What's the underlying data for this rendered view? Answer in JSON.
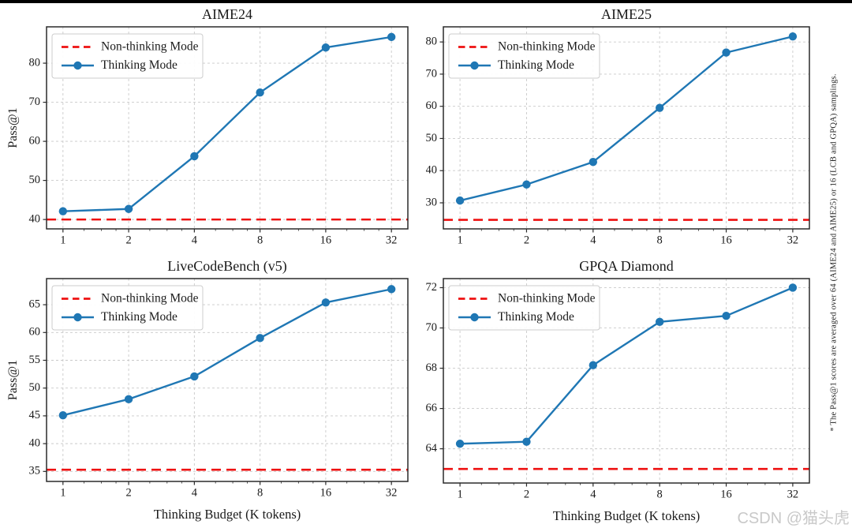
{
  "figure": {
    "sidenote": "* The Pass@1 scores are averaged over 64 (AIME24 and AIME25) or 16 (LCB and GPQA) samplings.",
    "watermark": "CSDN @猫头虎",
    "colors": {
      "thinking": "#1f77b4",
      "non_thinking": "#ee1111",
      "grid": "#c9c9c9",
      "spine": "#2a2a2a",
      "legend_border": "#cccccc"
    }
  },
  "legend": {
    "non_thinking_label": "Non-thinking Mode",
    "thinking_label": "Thinking Mode"
  },
  "chart_data": [
    {
      "type": "line",
      "id": "aime24",
      "title": "AIME24",
      "xlabel": "",
      "ylabel": "Pass@1",
      "xscale": "log2",
      "x": [
        1,
        2,
        4,
        8,
        16,
        32
      ],
      "xtick_labels": [
        "1",
        "2",
        "4",
        "8",
        "16",
        "32"
      ],
      "series": [
        {
          "name": "Thinking Mode",
          "kind": "line",
          "values": [
            42.1,
            42.7,
            56.2,
            72.5,
            84.0,
            86.7
          ]
        },
        {
          "name": "Non-thinking Mode",
          "kind": "hline",
          "value": 40.0
        }
      ],
      "yticks": [
        40,
        50,
        60,
        70,
        80
      ],
      "ylim": [
        37.6,
        89.3
      ],
      "grid": true,
      "legend_position": "upper-left"
    },
    {
      "type": "line",
      "id": "aime25",
      "title": "AIME25",
      "xlabel": "",
      "ylabel": "",
      "xscale": "log2",
      "x": [
        1,
        2,
        4,
        8,
        16,
        32
      ],
      "xtick_labels": [
        "1",
        "2",
        "4",
        "8",
        "16",
        "32"
      ],
      "series": [
        {
          "name": "Thinking Mode",
          "kind": "line",
          "values": [
            30.7,
            35.7,
            42.7,
            59.5,
            76.7,
            81.7
          ]
        },
        {
          "name": "Non-thinking Mode",
          "kind": "hline",
          "value": 24.7
        }
      ],
      "yticks": [
        30,
        40,
        50,
        60,
        70,
        80
      ],
      "ylim": [
        21.9,
        84.7
      ],
      "grid": true,
      "legend_position": "upper-left"
    },
    {
      "type": "line",
      "id": "livecodebench-v5",
      "title": "LiveCodeBench (v5)",
      "xlabel": "Thinking Budget (K tokens)",
      "ylabel": "Pass@1",
      "xscale": "log2",
      "x": [
        1,
        2,
        4,
        8,
        16,
        32
      ],
      "xtick_labels": [
        "1",
        "2",
        "4",
        "8",
        "16",
        "32"
      ],
      "series": [
        {
          "name": "Thinking Mode",
          "kind": "line",
          "values": [
            45.1,
            48.0,
            52.1,
            59.0,
            65.4,
            67.8
          ]
        },
        {
          "name": "Non-thinking Mode",
          "kind": "hline",
          "value": 35.3
        }
      ],
      "yticks": [
        35,
        40,
        45,
        50,
        55,
        60,
        65
      ],
      "ylim": [
        33.2,
        69.7
      ],
      "grid": true,
      "legend_position": "upper-left"
    },
    {
      "type": "line",
      "id": "gpqa-diamond",
      "title": "GPQA Diamond",
      "xlabel": "Thinking Budget (K tokens)",
      "ylabel": "",
      "xscale": "log2",
      "x": [
        1,
        2,
        4,
        8,
        16,
        32
      ],
      "xtick_labels": [
        "1",
        "2",
        "4",
        "8",
        "16",
        "32"
      ],
      "series": [
        {
          "name": "Thinking Mode",
          "kind": "line",
          "values": [
            64.25,
            64.35,
            68.15,
            70.3,
            70.6,
            72.0
          ]
        },
        {
          "name": "Non-thinking Mode",
          "kind": "hline",
          "value": 63.0
        }
      ],
      "yticks": [
        64,
        66,
        68,
        70,
        72
      ],
      "ylim": [
        62.3,
        72.45
      ],
      "grid": true,
      "legend_position": "upper-left"
    }
  ]
}
